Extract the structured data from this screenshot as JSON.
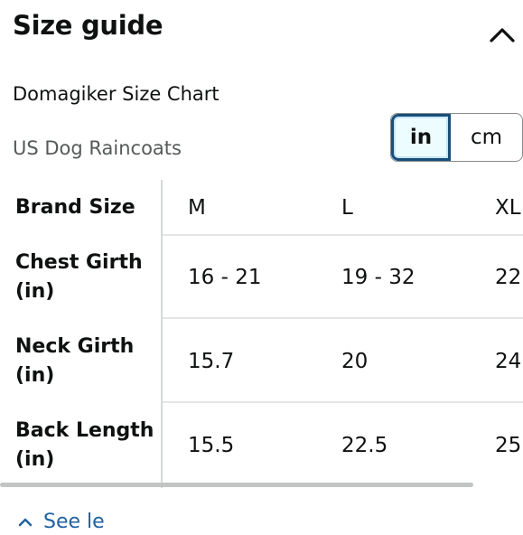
{
  "section": {
    "title": "Size guide",
    "collapse_icon": "chevron-up-icon"
  },
  "chart": {
    "name": "Domagiker Size Chart",
    "subtitle": "US Dog Raincoats"
  },
  "unit_toggle": {
    "options": [
      "in",
      "cm"
    ],
    "selected": "in",
    "accent_color": "#1a4e7a"
  },
  "table": {
    "header": {
      "label": "Brand Size",
      "values": [
        "M",
        "L",
        "XL"
      ]
    },
    "rows": [
      {
        "label": "Chest Girth (in)",
        "values": [
          "16 - 21",
          "19 - 32",
          "22"
        ]
      },
      {
        "label": "Neck Girth (in)",
        "values": [
          "15.7",
          "20",
          "24"
        ]
      },
      {
        "label": "Back Length (in)",
        "values": [
          "15.5",
          "22.5",
          "25"
        ]
      }
    ]
  },
  "footer": {
    "see_more_label": "See le",
    "see_more_icon": "chevron-up-icon",
    "link_color": "#2162a1"
  }
}
